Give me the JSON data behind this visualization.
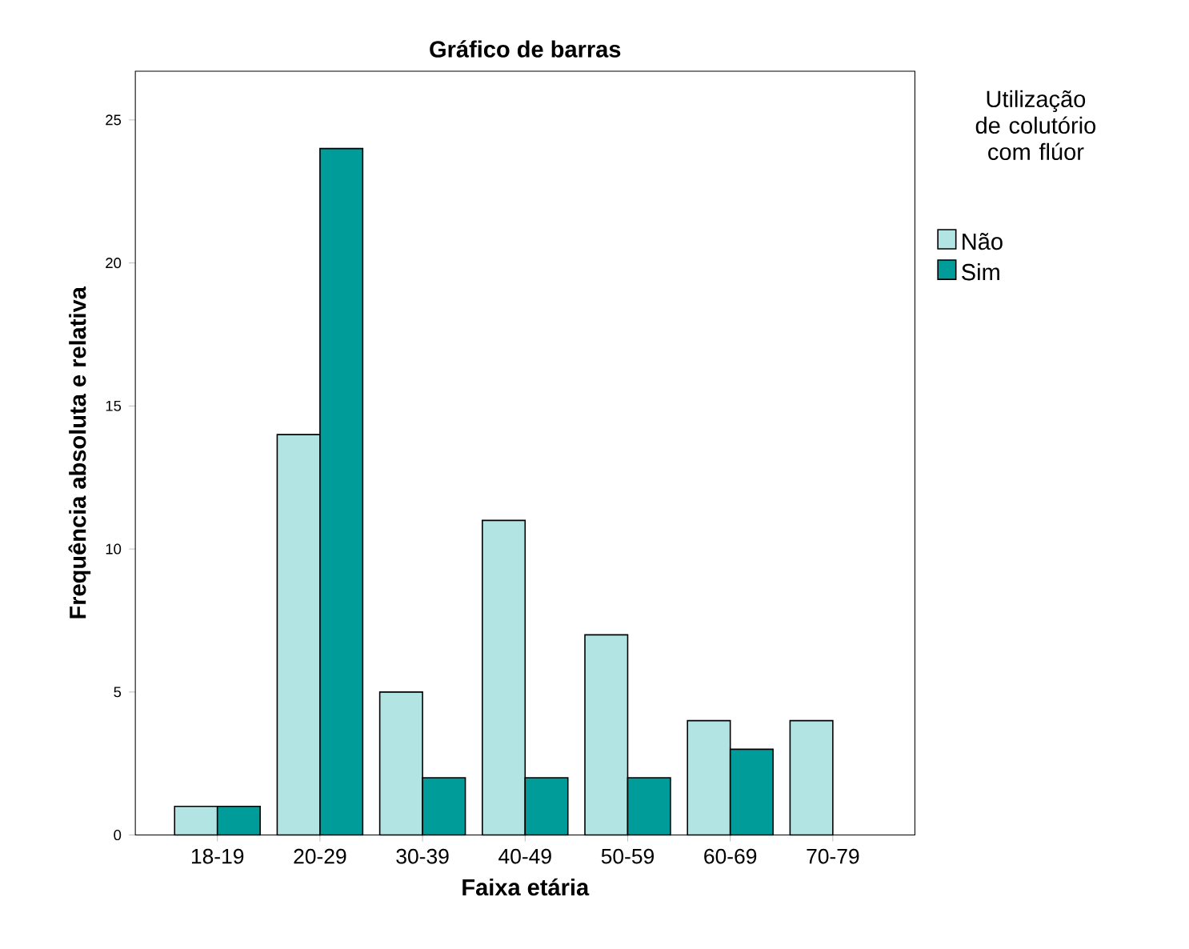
{
  "chart_data": {
    "type": "bar",
    "title": "Gráfico de barras",
    "xlabel": "Faixa etária",
    "ylabel": "Frequência absoluta e relativa",
    "legend_title": "Utilização de colutório com flúor",
    "categories": [
      "18-19",
      "20-29",
      "30-39",
      "40-49",
      "50-59",
      "60-69",
      "70-79"
    ],
    "series": [
      {
        "name": "Não",
        "color": "#b3e4e4",
        "values": [
          1,
          14,
          5,
          11,
          7,
          4,
          4
        ]
      },
      {
        "name": "Sim",
        "color": "#009c9a",
        "values": [
          1,
          24,
          2,
          2,
          2,
          3,
          null
        ]
      }
    ],
    "ylim": [
      0,
      26.7
    ],
    "yticks": [
      0,
      5,
      10,
      15,
      20,
      25
    ],
    "legend": "top right"
  }
}
